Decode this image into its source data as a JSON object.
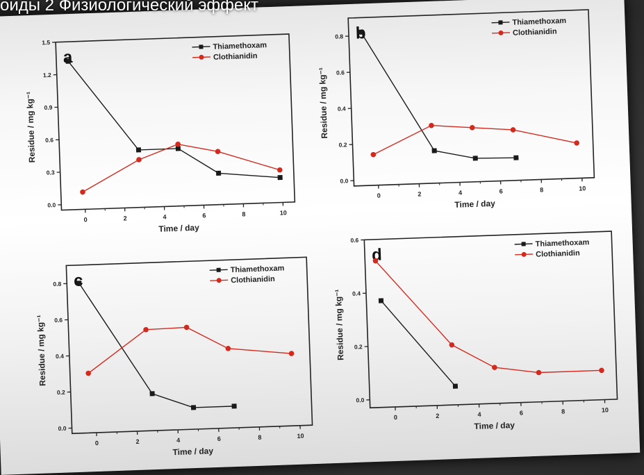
{
  "title": "оиды 2 Физиологический эффект",
  "colors": {
    "thiamethoxam": "#1a1a1a",
    "clothianidin": "#d42a1e"
  },
  "chart_data": [
    {
      "type": "line",
      "panel": "a",
      "xlabel": "Time / day",
      "ylabel": "Residue / mg kg⁻¹",
      "xlim": [
        -1.2,
        10.6
      ],
      "ylim": [
        -0.05,
        1.5
      ],
      "xticks": [
        0,
        2,
        4,
        6,
        8,
        10
      ],
      "yticks": [
        0.0,
        0.3,
        0.6,
        0.9,
        1.2,
        1.5
      ],
      "ytick_labels": [
        "0.0",
        "0.3",
        "0.6",
        "0.9",
        "1.2",
        "1.5"
      ],
      "legend": "top-right",
      "series": [
        {
          "name": "Thiamethoxam",
          "marker": "square",
          "x": [
            -0.6,
            2.8,
            4.8,
            6.8,
            9.9
          ],
          "y": [
            1.32,
            0.48,
            0.48,
            0.24,
            0.18
          ]
        },
        {
          "name": "Clothianidin",
          "marker": "circle",
          "x": [
            -0.1,
            2.8,
            4.8,
            6.8,
            9.9
          ],
          "y": [
            0.11,
            0.39,
            0.52,
            0.44,
            0.25
          ]
        }
      ]
    },
    {
      "type": "line",
      "panel": "b",
      "xlabel": "Time / day",
      "ylabel": "Residue / mg kg⁻¹",
      "xlim": [
        -1.2,
        10.6
      ],
      "ylim": [
        -0.03,
        0.9
      ],
      "xticks": [
        0,
        2,
        4,
        6,
        8,
        10
      ],
      "yticks": [
        0.0,
        0.2,
        0.4,
        0.6,
        0.8
      ],
      "ytick_labels": [
        "0.0",
        "0.2",
        "0.4",
        "0.6",
        "0.8"
      ],
      "legend": "top-right",
      "series": [
        {
          "name": "Thiamethoxam",
          "marker": "square",
          "x": [
            -0.6,
            2.8,
            4.8,
            6.8
          ],
          "y": [
            0.82,
            0.15,
            0.1,
            0.095
          ]
        },
        {
          "name": "Clothianidin",
          "marker": "circle",
          "x": [
            -0.2,
            2.7,
            4.7,
            6.7,
            9.8
          ],
          "y": [
            0.14,
            0.29,
            0.27,
            0.25,
            0.165
          ]
        }
      ]
    },
    {
      "type": "line",
      "panel": "c",
      "xlabel": "Time / day",
      "ylabel": "Residue / mg kg⁻¹",
      "xlim": [
        -1.2,
        10.6
      ],
      "ylim": [
        -0.03,
        0.9
      ],
      "xticks": [
        0,
        2,
        4,
        6,
        8,
        10
      ],
      "yticks": [
        0.0,
        0.2,
        0.4,
        0.6,
        0.8
      ],
      "ytick_labels": [
        "0.0",
        "0.2",
        "0.4",
        "0.6",
        "0.8"
      ],
      "legend": "top-right",
      "series": [
        {
          "name": "Thiamethoxam",
          "marker": "square",
          "x": [
            -0.6,
            2.8,
            4.8,
            6.8
          ],
          "y": [
            0.8,
            0.175,
            0.09,
            0.09
          ]
        },
        {
          "name": "Clothianidin",
          "marker": "circle",
          "x": [
            -0.3,
            2.6,
            4.6,
            6.6,
            9.7
          ],
          "y": [
            0.3,
            0.53,
            0.535,
            0.41,
            0.37
          ]
        }
      ]
    },
    {
      "type": "line",
      "panel": "d",
      "xlabel": "Time / day",
      "ylabel": "Residue / mg kg⁻¹",
      "xlim": [
        -1.2,
        10.6
      ],
      "ylim": [
        -0.03,
        0.6
      ],
      "xticks": [
        0,
        2,
        4,
        6,
        8,
        10
      ],
      "yticks": [
        0.0,
        0.2,
        0.4,
        0.6
      ],
      "ytick_labels": [
        "0.0",
        "0.2",
        "0.4",
        "0.6"
      ],
      "legend": "top-right",
      "series": [
        {
          "name": "Thiamethoxam",
          "marker": "square",
          "x": [
            -0.5,
            2.9
          ],
          "y": [
            0.37,
            0.04
          ]
        },
        {
          "name": "Clothianidin",
          "marker": "circle",
          "x": [
            -0.7,
            2.8,
            4.8,
            6.9,
            9.9
          ],
          "y": [
            0.52,
            0.195,
            0.105,
            0.08,
            0.08
          ]
        }
      ]
    }
  ]
}
